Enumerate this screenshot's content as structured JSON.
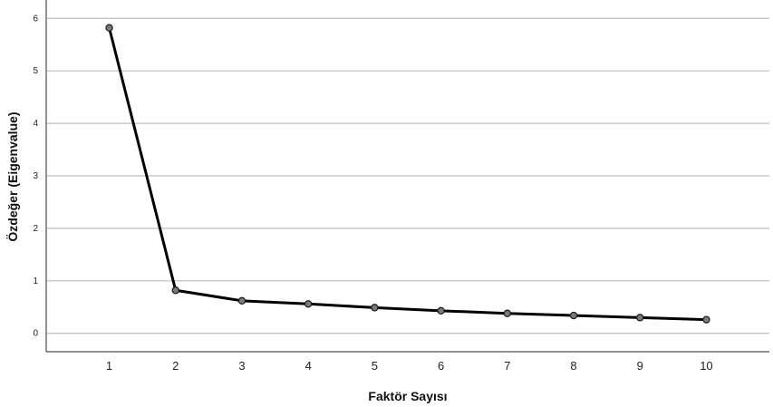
{
  "chart_data": {
    "type": "line",
    "title": "",
    "xlabel": "Faktör Sayısı",
    "ylabel": "Özdeğer (Eigenvalue)",
    "x": [
      1,
      2,
      3,
      4,
      5,
      6,
      7,
      8,
      9,
      10
    ],
    "x_tick_labels": [
      "1",
      "2",
      "3",
      "4",
      "5",
      "6",
      "7",
      "8",
      "9",
      "10"
    ],
    "y_tick_labels": [
      "0",
      "1",
      "2",
      "3",
      "4",
      "5",
      "6"
    ],
    "ylim": [
      -0.35,
      6.35
    ],
    "xlim": [
      0.05,
      10.95
    ],
    "grid": "horizontal",
    "series": [
      {
        "values": [
          5.82,
          0.82,
          0.62,
          0.56,
          0.49,
          0.43,
          0.38,
          0.34,
          0.3,
          0.26
        ]
      }
    ],
    "colors": {
      "line": "#000000",
      "marker_fill": "#7a7a7a",
      "grid": "#bdbdbd",
      "axis": "#4d4d4d"
    }
  }
}
